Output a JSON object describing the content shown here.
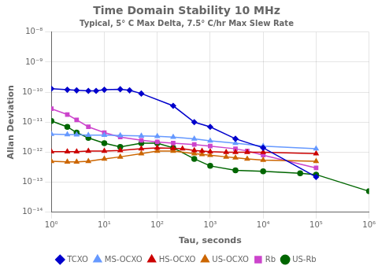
{
  "chart_data": {
    "type": "line",
    "title": "Time Domain Stability 10 MHz",
    "subtitle": "Typical, 5° C Max Delta, 7.5° C/hr Max Slew Rate",
    "xlabel": "Tau, seconds",
    "ylabel": "Allan Deviation",
    "log": true,
    "grid": true,
    "legend": "bottom",
    "xlim": [
      1,
      1000000
    ],
    "ylim": [
      1e-14,
      1e-08
    ],
    "xticks": [
      {
        "value": 1,
        "label": "10⁰"
      },
      {
        "value": 10,
        "label": "10¹"
      },
      {
        "value": 100,
        "label": "10²"
      },
      {
        "value": 1000,
        "label": "10³"
      },
      {
        "value": 10000,
        "label": "10⁴"
      },
      {
        "value": 100000,
        "label": "10⁵"
      },
      {
        "value": 1000000,
        "label": "10⁶"
      }
    ],
    "yticks": [
      {
        "value": 1e-14,
        "label": "10⁻¹⁴"
      },
      {
        "value": 1e-13,
        "label": "10⁻¹³"
      },
      {
        "value": 1e-12,
        "label": "10⁻¹²"
      },
      {
        "value": 1e-11,
        "label": "10⁻¹¹"
      },
      {
        "value": 1e-10,
        "label": "10⁻¹⁰"
      },
      {
        "value": 1e-09,
        "label": "10⁻⁹"
      },
      {
        "value": 1e-08,
        "label": "10⁻⁸"
      }
    ],
    "series": [
      {
        "name": "TCXO",
        "color": "#0000cc",
        "marker": "diamond",
        "x": [
          1,
          2,
          3,
          5,
          7,
          10,
          20,
          30,
          50,
          200,
          500,
          1000,
          3000,
          10000,
          100000
        ],
        "values": [
          1.3e-10,
          1.2e-10,
          1.15e-10,
          1.1e-10,
          1.1e-10,
          1.2e-10,
          1.25e-10,
          1.15e-10,
          9e-11,
          3.5e-11,
          1e-11,
          7e-12,
          2.8e-12,
          1.4e-12,
          1.5e-13
        ]
      },
      {
        "name": "MS-OCXO",
        "color": "#6699ff",
        "marker": "triangle",
        "x": [
          1,
          2,
          3,
          5,
          10,
          20,
          50,
          100,
          200,
          500,
          1000,
          3000,
          10000,
          100000
        ],
        "values": [
          4e-12,
          3.9e-12,
          3.8e-12,
          3.7e-12,
          3.7e-12,
          3.6e-12,
          3.5e-12,
          3.4e-12,
          3.2e-12,
          2.8e-12,
          2.4e-12,
          2e-12,
          1.6e-12,
          1.3e-12
        ]
      },
      {
        "name": "HS-OCXO",
        "color": "#cc0000",
        "marker": "triangle",
        "x": [
          1,
          2,
          3,
          5,
          10,
          20,
          50,
          100,
          200,
          300,
          500,
          700,
          1000,
          2000,
          3000,
          5000,
          10000,
          100000
        ],
        "values": [
          1.05e-12,
          1.05e-12,
          1.05e-12,
          1.1e-12,
          1.1e-12,
          1.15e-12,
          1.3e-12,
          1.4e-12,
          1.35e-12,
          1.3e-12,
          1.15e-12,
          1.1e-12,
          1.05e-12,
          1e-12,
          1e-12,
          1e-12,
          1e-12,
          9e-13
        ]
      },
      {
        "name": "US-OCXO",
        "color": "#cc6600",
        "marker": "triangle",
        "x": [
          1,
          2,
          3,
          5,
          10,
          20,
          50,
          100,
          200,
          500,
          700,
          1000,
          2000,
          3000,
          5000,
          10000,
          100000
        ],
        "values": [
          5e-13,
          4.8e-13,
          4.8e-13,
          5e-13,
          6e-13,
          7e-13,
          9e-13,
          1.1e-12,
          1.1e-12,
          9e-13,
          8.5e-13,
          8e-13,
          7e-13,
          6.5e-13,
          6e-13,
          5.5e-13,
          5e-13
        ]
      },
      {
        "name": "Rb",
        "color": "#cc44cc",
        "marker": "square",
        "x": [
          1,
          2,
          3,
          5,
          10,
          20,
          50,
          100,
          200,
          500,
          1000,
          3000,
          5000,
          10000,
          100000
        ],
        "values": [
          2.8e-11,
          1.8e-11,
          1.2e-11,
          7e-12,
          4.5e-12,
          3.2e-12,
          2.5e-12,
          2.2e-12,
          2e-12,
          1.8e-12,
          1.6e-12,
          1.3e-12,
          1.1e-12,
          8e-13,
          3e-13
        ]
      },
      {
        "name": "US-Rb",
        "color": "#006600",
        "marker": "circle",
        "x": [
          1,
          2,
          3,
          5,
          10,
          20,
          50,
          100,
          200,
          500,
          1000,
          3000,
          10000,
          50000,
          100000,
          1000000
        ],
        "values": [
          1.1e-11,
          7e-12,
          4.5e-12,
          3e-12,
          2e-12,
          1.5e-12,
          2e-12,
          2e-12,
          1.4e-12,
          6e-13,
          3.5e-13,
          2.5e-13,
          2.3e-13,
          2e-13,
          1.8e-13,
          5e-14
        ]
      }
    ]
  }
}
